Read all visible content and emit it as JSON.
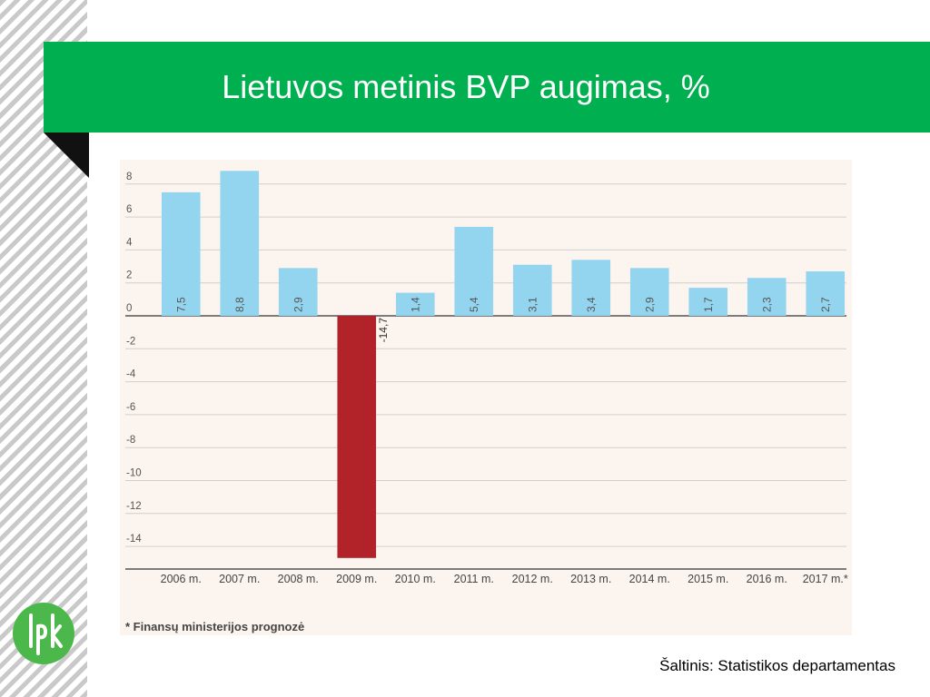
{
  "slide": {
    "title": "Lietuvos metinis BVP augimas, %",
    "source": "Šaltinis: Statistikos departamentas",
    "footnote": "* Finansų ministerijos prognozė"
  },
  "logo": {
    "icon": "lpk-logo-icon",
    "color": "#4cb84c"
  },
  "colors": {
    "title_bar": "#00b050",
    "positive_bar": "#93d4ef",
    "negative_bar": "#b22229",
    "panel_bg": "#fbf4ef"
  },
  "chart_data": {
    "type": "bar",
    "title": "Lietuvos metinis BVP augimas, %",
    "xlabel": "",
    "ylabel": "",
    "ylim": [
      -16,
      8
    ],
    "yticks": [
      8,
      6,
      4,
      2,
      0,
      -2,
      -4,
      -6,
      -8,
      -10,
      -12,
      -14
    ],
    "ytick_labels": [
      "8",
      "6",
      "4",
      "2",
      "0",
      "-2",
      "-4",
      "-6",
      "-8",
      "-10",
      "-12",
      "-14"
    ],
    "grid": true,
    "categories": [
      "2006 m.",
      "2007 m.",
      "2008 m.",
      "2009 m.",
      "2010 m.",
      "2011 m.",
      "2012 m.",
      "2013 m.",
      "2014 m.",
      "2015 m.",
      "2016 m.",
      "2017 m.*"
    ],
    "values": [
      7.5,
      8.8,
      2.9,
      -14.7,
      1.4,
      5.4,
      3.1,
      3.4,
      2.9,
      1.7,
      2.3,
      2.7
    ],
    "value_labels": [
      "7,5",
      "8,8",
      "2,9",
      "-14,7",
      "1,4",
      "5,4",
      "3,1",
      "3,4",
      "2,9",
      "1,7",
      "2,3",
      "2,7"
    ]
  }
}
